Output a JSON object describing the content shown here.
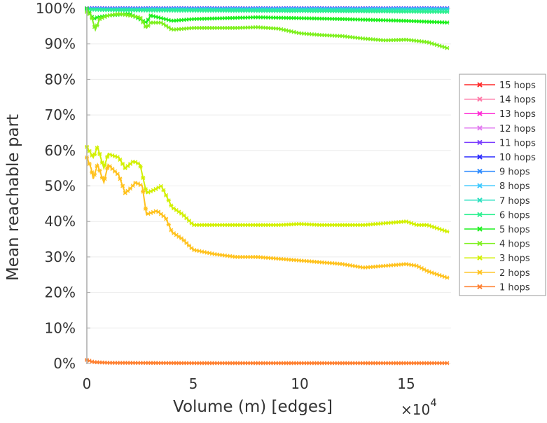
{
  "chart_data": {
    "type": "line",
    "title": "",
    "xlabel": "Volume (m) [edges]",
    "x_multiplier": "×10",
    "x_multiplier_exp": "4",
    "ylabel": "Mean reachable part",
    "xlim": [
      0,
      17.1
    ],
    "ylim": [
      0,
      100
    ],
    "xticks": [
      "0",
      "5",
      "10",
      "15"
    ],
    "xtick_values": [
      0,
      5,
      10,
      15
    ],
    "yticks": [
      "0%",
      "10%",
      "20%",
      "30%",
      "40%",
      "50%",
      "60%",
      "70%",
      "80%",
      "90%",
      "100%"
    ],
    "ytick_values": [
      0,
      10,
      20,
      30,
      40,
      50,
      60,
      70,
      80,
      90,
      100
    ],
    "grid": true,
    "legend_position": "right",
    "series": [
      {
        "name": "15 hops",
        "color": "#ff2a2a",
        "x": [
          0,
          17
        ],
        "y": [
          100,
          100
        ]
      },
      {
        "name": "14 hops",
        "color": "#ff7aa8",
        "x": [
          0,
          17
        ],
        "y": [
          100,
          100
        ]
      },
      {
        "name": "13 hops",
        "color": "#ff2ad4",
        "x": [
          0,
          17
        ],
        "y": [
          100,
          100
        ]
      },
      {
        "name": "12 hops",
        "color": "#e27af0",
        "x": [
          0,
          17
        ],
        "y": [
          100,
          100
        ]
      },
      {
        "name": "11 hops",
        "color": "#7a3cff",
        "x": [
          0,
          17
        ],
        "y": [
          100,
          100
        ]
      },
      {
        "name": "10 hops",
        "color": "#2a2aff",
        "x": [
          0,
          17
        ],
        "y": [
          100,
          100
        ]
      },
      {
        "name": "9 hops",
        "color": "#2f8cff",
        "x": [
          0,
          17
        ],
        "y": [
          99.9,
          99.9
        ]
      },
      {
        "name": "8 hops",
        "color": "#3cc8ff",
        "x": [
          0,
          17
        ],
        "y": [
          99.8,
          99.8
        ]
      },
      {
        "name": "7 hops",
        "color": "#2ce0c0",
        "x": [
          0,
          17
        ],
        "y": [
          99.7,
          99.6
        ]
      },
      {
        "name": "6 hops",
        "color": "#2cf090",
        "x": [
          0,
          1,
          3,
          8,
          12,
          17
        ],
        "y": [
          99.7,
          99.5,
          99.4,
          99.3,
          99.2,
          99.0
        ]
      },
      {
        "name": "5 hops",
        "color": "#1ef01e",
        "x": [
          0,
          0.3,
          0.5,
          1,
          2,
          2.8,
          3,
          4,
          5,
          8,
          12,
          15,
          17
        ],
        "y": [
          100,
          97,
          97.5,
          98,
          98.5,
          96,
          98,
          96.5,
          97,
          97.5,
          97,
          96.5,
          96
        ]
      },
      {
        "name": "4 hops",
        "color": "#7ef01e",
        "x": [
          0,
          0.2,
          0.4,
          0.6,
          1,
          1.5,
          2,
          2.5,
          2.8,
          3,
          3.5,
          4,
          5,
          6,
          7,
          8,
          9,
          10,
          11,
          12,
          13,
          14,
          15,
          16,
          17
        ],
        "y": [
          99,
          98,
          94,
          97,
          98,
          98.5,
          98,
          97.5,
          94.5,
          96,
          96,
          94,
          94.5,
          94.5,
          94.5,
          94.7,
          94.3,
          93,
          92.5,
          92.2,
          91.5,
          91,
          91.2,
          90.5,
          88.7
        ]
      },
      {
        "name": "3 hops",
        "color": "#d2f000",
        "x": [
          0,
          0.3,
          0.5,
          0.8,
          1,
          1.5,
          1.8,
          2.2,
          2.5,
          2.8,
          3.2,
          3.5,
          4,
          4.5,
          5,
          6,
          7,
          8,
          9,
          10,
          11,
          12,
          13,
          14,
          15,
          15.5,
          16,
          17
        ],
        "y": [
          61,
          58,
          61,
          55,
          59,
          58,
          55,
          57,
          56,
          48,
          49,
          50,
          44,
          42,
          39,
          39,
          39,
          39,
          39,
          39.3,
          39,
          39,
          39,
          39.5,
          40,
          39,
          39,
          37
        ]
      },
      {
        "name": "2 hops",
        "color": "#ffc21e",
        "x": [
          0,
          0.2,
          0.3,
          0.5,
          0.8,
          1,
          1.5,
          1.8,
          2,
          2.3,
          2.6,
          2.8,
          3.3,
          3.7,
          4,
          4.5,
          5,
          6,
          7,
          8,
          9,
          10,
          11,
          12,
          13,
          14,
          15,
          15.5,
          16,
          17
        ],
        "y": [
          58,
          55,
          52,
          56,
          51,
          56,
          53,
          48,
          49,
          51,
          50,
          42,
          43,
          41,
          37,
          35,
          32,
          30.8,
          30,
          30,
          29.5,
          29,
          28.5,
          28,
          27,
          27.5,
          28,
          27.5,
          26,
          24
        ]
      },
      {
        "name": "1 hops",
        "color": "#ff8030",
        "x": [
          0,
          0.3,
          1,
          5,
          10,
          17
        ],
        "y": [
          1,
          0.4,
          0.2,
          0.1,
          0.1,
          0.1
        ]
      }
    ]
  }
}
